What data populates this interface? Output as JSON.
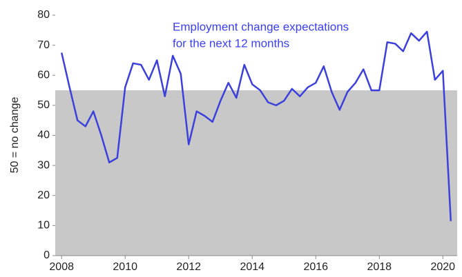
{
  "chart_data": {
    "type": "line",
    "y_label": "50 = no change",
    "annotation": [
      "Employment change expectations",
      "for the next 12 months"
    ],
    "annotation_color": "#3a3ff0",
    "x": [
      2008,
      2008.25,
      2008.5,
      2008.75,
      2009,
      2009.25,
      2009.5,
      2009.75,
      2010,
      2010.25,
      2010.5,
      2010.75,
      2011,
      2011.25,
      2011.5,
      2011.75,
      2012,
      2012.25,
      2012.5,
      2012.75,
      2013,
      2013.25,
      2013.5,
      2013.75,
      2014,
      2014.25,
      2014.5,
      2014.75,
      2015,
      2015.25,
      2015.5,
      2015.75,
      2016,
      2016.25,
      2016.5,
      2016.75,
      2017,
      2017.25,
      2017.5,
      2017.75,
      2018,
      2018.25,
      2018.5,
      2018.75,
      2019,
      2019.25,
      2019.5,
      2019.75,
      2020,
      2020.25
    ],
    "series": [
      {
        "name": "Employment change expectations",
        "color": "#3b3fdb",
        "values": [
          67.5,
          56,
          45,
          43,
          48,
          40,
          31,
          32.5,
          56,
          64,
          63.5,
          58.5,
          65,
          53,
          66.5,
          60.5,
          37,
          48,
          46.5,
          44.5,
          51.5,
          57.5,
          52.5,
          63.5,
          57,
          55,
          51,
          50,
          51.5,
          55.5,
          53,
          56,
          57.5,
          63,
          54.5,
          48.5,
          54.5,
          57.5,
          62,
          55,
          55,
          71,
          70.5,
          68,
          74,
          71.5,
          74.5,
          58.5,
          61.5,
          11.5
        ]
      }
    ],
    "shade_ylim": [
      0,
      55
    ],
    "shade_color": "#c8c8c8",
    "xlim": [
      2007.8,
      2020.45
    ],
    "xticks": [
      2008,
      2010,
      2012,
      2014,
      2016,
      2018,
      2020
    ],
    "ylim": [
      0,
      80
    ],
    "yticks": [
      0,
      10,
      20,
      30,
      40,
      50,
      60,
      70,
      80
    ]
  }
}
